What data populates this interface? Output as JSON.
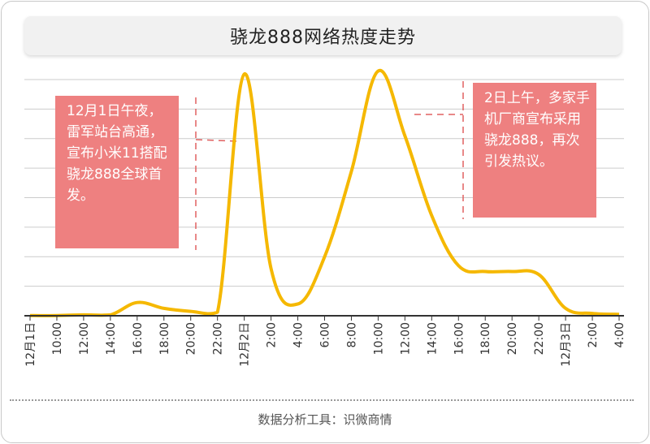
{
  "title": "骁龙888网络热度走势",
  "footer": "数据分析工具：识微商情",
  "colors": {
    "line": "#f5b800",
    "callout_bg": "#ee8080",
    "dash": "#e06060",
    "grid": "#cccccc"
  },
  "annotations": [
    {
      "text": "12月1日午夜，雷军站台高通，宣布小米11搭配骁龙888全球首发。",
      "anchor_x": "12月2日",
      "position": "left"
    },
    {
      "text": "2日上午，多家手机厂商宣布采用骁龙888，再次引发热议。",
      "anchor_x": "16:00",
      "position": "right"
    }
  ],
  "chart_data": {
    "type": "line",
    "title": "骁龙888网络热度走势",
    "categories": [
      "12月1日",
      "10:00",
      "12:00",
      "14:00",
      "16:00",
      "18:00",
      "20:00",
      "22:00",
      "12月2日",
      "2:00",
      "4:00",
      "6:00",
      "8:00",
      "10:00",
      "12:00",
      "14:00",
      "16:00",
      "18:00",
      "20:00",
      "22:00",
      "12月3日",
      "2:00",
      "4:00"
    ],
    "series": [
      {
        "values": [
          0.5,
          0.8,
          3,
          3,
          45,
          25,
          15,
          12,
          820,
          160,
          40,
          200,
          490,
          830,
          610,
          340,
          170,
          150,
          150,
          140,
          25,
          8,
          5
        ]
      }
    ],
    "x": [
      0,
      1,
      2,
      3,
      4,
      5,
      6,
      7,
      8,
      9,
      10,
      11,
      12,
      13,
      14,
      15,
      16,
      17,
      18,
      19,
      20,
      21,
      22
    ],
    "ylim": [
      0,
      840
    ],
    "grid": true,
    "legend": "none"
  }
}
